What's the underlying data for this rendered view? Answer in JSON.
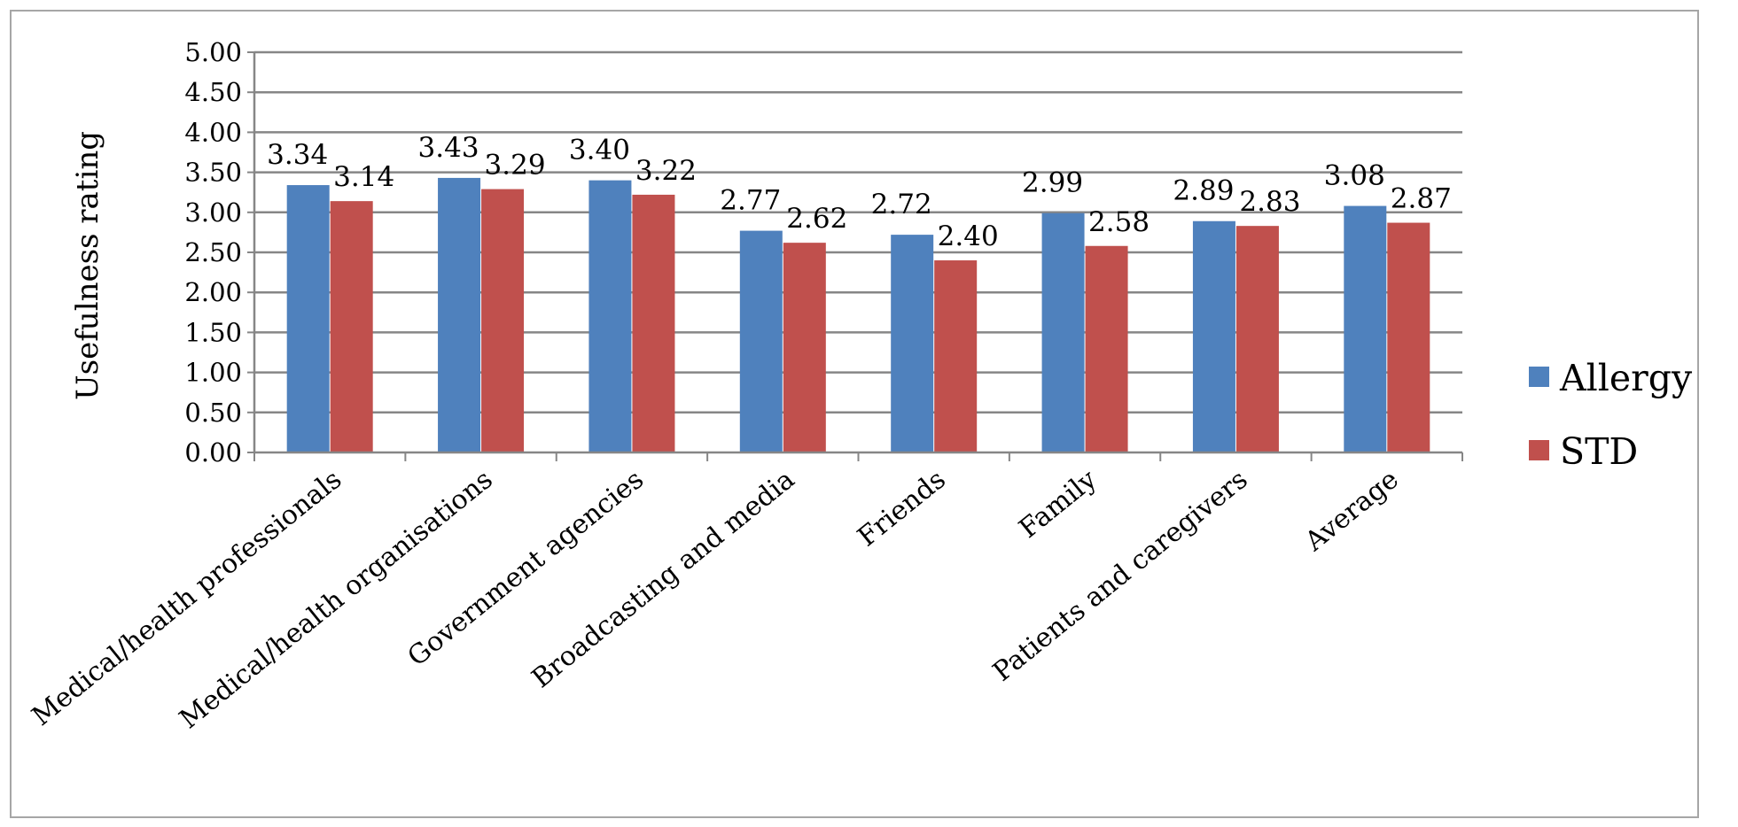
{
  "chart_data": {
    "type": "bar",
    "title": "",
    "xlabel": "",
    "ylabel": "Usefulness rating",
    "ylim": [
      0,
      5
    ],
    "y_tick_step": 0.5,
    "y_tick_labels": [
      "0.00",
      "0.50",
      "1.00",
      "1.50",
      "2.00",
      "2.50",
      "3.00",
      "3.50",
      "4.00",
      "4.50",
      "5.00"
    ],
    "grid": true,
    "legend_position": "right",
    "categories": [
      "Medical/health professionals",
      "Medical/health organisations",
      "Government agencies",
      "Broadcasting and media",
      "Friends",
      "Family",
      "Patients and caregivers",
      "Average"
    ],
    "series": [
      {
        "name": "Allergy",
        "color": "#4f81bd",
        "values": [
          3.34,
          3.43,
          3.4,
          2.77,
          2.72,
          2.99,
          2.89,
          3.08
        ],
        "labels": [
          "3.34",
          "3.43",
          "3.40",
          "2.77",
          "2.72",
          "2.99",
          "2.89",
          "3.08"
        ]
      },
      {
        "name": "STD",
        "color": "#c0504d",
        "values": [
          3.14,
          3.29,
          3.22,
          2.62,
          2.4,
          2.58,
          2.83,
          2.87
        ],
        "labels": [
          "3.14",
          "3.29",
          "3.22",
          "2.62",
          "2.40",
          "2.58",
          "2.83",
          "2.87"
        ]
      }
    ],
    "colors": {
      "grid": "#868686",
      "axis": "#868686"
    }
  }
}
